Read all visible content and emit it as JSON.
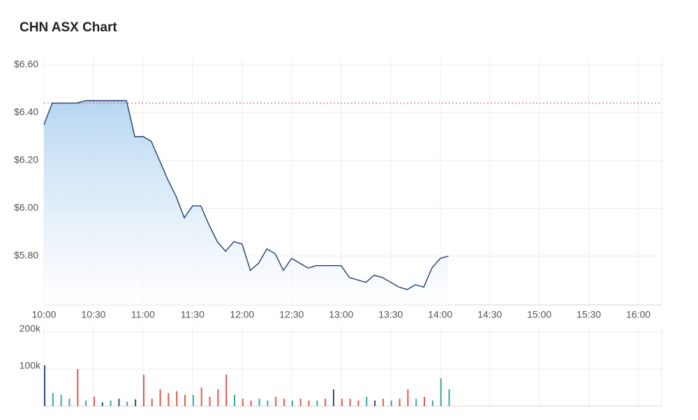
{
  "chart_data": [
    {
      "type": "line",
      "title": "CHN ASX Chart",
      "x": [
        "10:00",
        "10:05",
        "10:10",
        "10:15",
        "10:20",
        "10:25",
        "10:30",
        "10:35",
        "10:40",
        "10:45",
        "10:50",
        "10:55",
        "11:00",
        "11:05",
        "11:10",
        "11:15",
        "11:20",
        "11:25",
        "11:30",
        "11:35",
        "11:40",
        "11:45",
        "11:50",
        "11:55",
        "12:00",
        "12:05",
        "12:10",
        "12:15",
        "12:20",
        "12:25",
        "12:30",
        "12:35",
        "12:40",
        "12:45",
        "12:50",
        "12:55",
        "13:00",
        "13:05",
        "13:10",
        "13:15",
        "13:20",
        "13:25",
        "13:30",
        "13:35",
        "13:40",
        "13:45",
        "13:50",
        "13:55",
        "14:00",
        "14:05"
      ],
      "series": [
        {
          "color": "#1f3f73",
          "values": [
            6.35,
            6.44,
            6.44,
            6.44,
            6.44,
            6.45,
            6.45,
            6.45,
            6.45,
            6.45,
            6.45,
            6.3,
            6.3,
            6.28,
            6.2,
            6.12,
            6.05,
            5.96,
            6.01,
            6.01,
            5.93,
            5.86,
            5.82,
            5.86,
            5.85,
            5.74,
            5.77,
            5.83,
            5.81,
            5.74,
            5.79,
            5.77,
            5.75,
            5.76,
            5.76,
            5.76,
            5.76,
            5.71,
            5.7,
            5.69,
            5.72,
            5.71,
            5.69,
            5.67,
            5.66,
            5.68,
            5.67,
            5.75,
            5.79,
            5.8
          ]
        }
      ],
      "fill_color": "#a9cfee",
      "reference_line": {
        "value": 6.44,
        "color": "#e8554e"
      },
      "xlim": [
        "10:00",
        "16:15"
      ],
      "xticks": [
        "10:00",
        "10:30",
        "11:00",
        "11:30",
        "12:00",
        "12:30",
        "13:00",
        "13:30",
        "14:00",
        "14:30",
        "15:00",
        "15:30",
        "16:00"
      ],
      "ylim": [
        5.6,
        6.6
      ],
      "yticks": [
        {
          "value": 5.8,
          "label": "$5.80"
        },
        {
          "value": 6.0,
          "label": "$6.00"
        },
        {
          "value": 6.2,
          "label": "$6.20"
        },
        {
          "value": 6.4,
          "label": "$6.40"
        },
        {
          "value": 6.6,
          "label": "$6.60"
        }
      ],
      "grid": true
    },
    {
      "type": "bar",
      "x": [
        "10:00",
        "10:05",
        "10:10",
        "10:15",
        "10:20",
        "10:25",
        "10:30",
        "10:35",
        "10:40",
        "10:45",
        "10:50",
        "10:55",
        "11:00",
        "11:05",
        "11:10",
        "11:15",
        "11:20",
        "11:25",
        "11:30",
        "11:35",
        "11:40",
        "11:45",
        "11:50",
        "11:55",
        "12:00",
        "12:05",
        "12:10",
        "12:15",
        "12:20",
        "12:25",
        "12:30",
        "12:35",
        "12:40",
        "12:45",
        "12:50",
        "12:55",
        "13:00",
        "13:05",
        "13:10",
        "13:15",
        "13:20",
        "13:25",
        "13:30",
        "13:35",
        "13:40",
        "13:45",
        "13:50",
        "13:55",
        "14:00",
        "14:05"
      ],
      "series": [
        {
          "values": [
            110000,
            35000,
            30000,
            20000,
            100000,
            15000,
            25000,
            10000,
            15000,
            20000,
            12000,
            18000,
            85000,
            20000,
            45000,
            35000,
            40000,
            30000,
            30000,
            50000,
            25000,
            45000,
            85000,
            30000,
            20000,
            15000,
            20000,
            15000,
            25000,
            20000,
            15000,
            20000,
            15000,
            15000,
            20000,
            45000,
            20000,
            20000,
            15000,
            25000,
            15000,
            20000,
            15000,
            20000,
            45000,
            20000,
            25000,
            15000,
            75000,
            45000
          ],
          "colors": [
            "#2a4a8a",
            "#3aa89a",
            "#3aa89a",
            "#3aa89a",
            "#e8554e",
            "#3aa89a",
            "#e8554e",
            "#2a4a8a",
            "#3aa89a",
            "#2a4a8a",
            "#3aa89a",
            "#2a4a8a",
            "#e8554e",
            "#e8554e",
            "#e8554e",
            "#e8554e",
            "#e8554e",
            "#e8554e",
            "#3aa89a",
            "#e8554e",
            "#e8554e",
            "#e8554e",
            "#e8554e",
            "#3aa89a",
            "#e8554e",
            "#e8554e",
            "#3aa89a",
            "#3aa89a",
            "#e8554e",
            "#e8554e",
            "#3aa89a",
            "#e8554e",
            "#e8554e",
            "#3aa89a",
            "#e8554e",
            "#2a4a8a",
            "#e8554e",
            "#e8554e",
            "#e8554e",
            "#3aa89a",
            "#2a4a8a",
            "#e8554e",
            "#3aa89a",
            "#e8554e",
            "#e8554e",
            "#3aa89a",
            "#e8554e",
            "#3aa89a",
            "#3aa89a",
            "#3aa89a"
          ]
        }
      ],
      "xlim": [
        "10:00",
        "16:15"
      ],
      "xticks": [
        "10:00",
        "10:30",
        "11:00",
        "11:30",
        "12:00",
        "12:30",
        "13:00",
        "13:30",
        "14:00",
        "14:30",
        "15:00",
        "15:30",
        "16:00"
      ],
      "ylim": [
        0,
        200000
      ],
      "yticks": [
        {
          "value": 100000,
          "label": "100k"
        },
        {
          "value": 200000,
          "label": "200k"
        }
      ],
      "grid": true
    }
  ]
}
